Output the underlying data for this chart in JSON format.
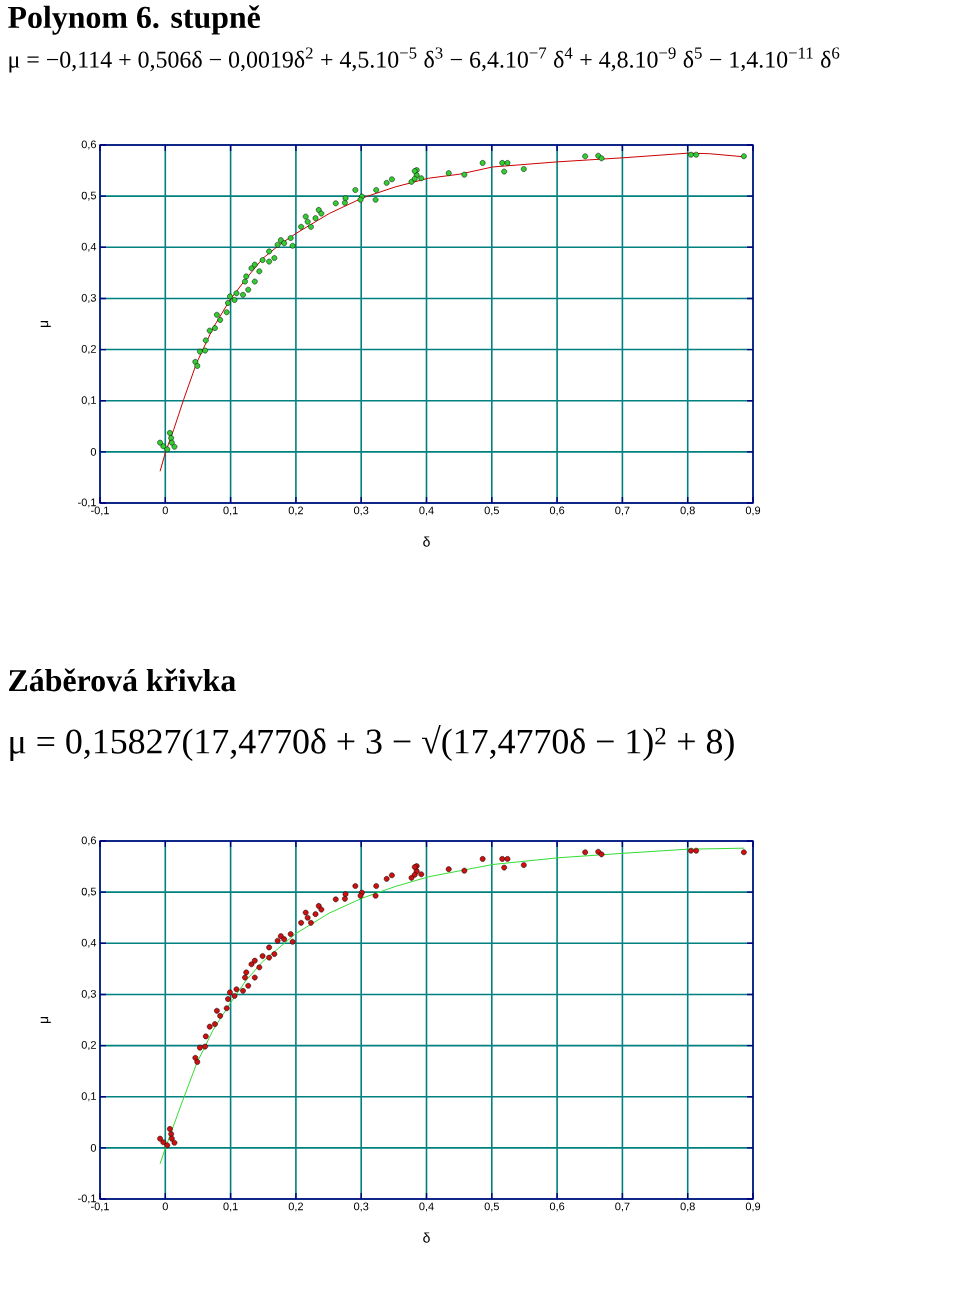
{
  "chart_data": [
    {
      "type": "scatter",
      "title": "Polynom 6. stupně",
      "subtitle": "μ = −0,114 + 0,506δ − 0,0019δ$^{2}$ + 4,5.10$^{−5}$ δ$^{3}$ − 6,4.10$^{−7}$ δ$^{4}$ + 4,8.10$^{−9}$ δ$^{5}$ − 1,4.10$^{−11}$ δ$^{6}$",
      "xlabel": "δ",
      "ylabel": "μ",
      "xlim": [
        -0.1,
        0.9
      ],
      "ylim": [
        -0.1,
        0.6
      ],
      "xticks": [
        {
          "value": -0.1,
          "label": "-0,1"
        },
        0,
        {
          "value": 0.1,
          "label": "0,1"
        },
        {
          "value": 0.2,
          "label": "0,2"
        },
        {
          "value": 0.3,
          "label": "0,3"
        },
        {
          "value": 0.4,
          "label": "0,4"
        },
        {
          "value": 0.5,
          "label": "0,5"
        },
        {
          "value": 0.6,
          "label": "0,6"
        },
        {
          "value": 0.7,
          "label": "0,7"
        },
        {
          "value": 0.8,
          "label": "0,8"
        },
        {
          "value": 0.9,
          "label": "0,9"
        }
      ],
      "yticks": [
        {
          "value": -0.1,
          "label": "-0,1"
        },
        0,
        {
          "value": 0.1,
          "label": "0,1"
        },
        {
          "value": 0.2,
          "label": "0,2"
        },
        {
          "value": 0.3,
          "label": "0,3"
        },
        {
          "value": 0.4,
          "label": "0,4"
        },
        {
          "value": 0.5,
          "label": "0,5"
        },
        {
          "value": 0.6,
          "label": "0,6"
        }
      ],
      "grid": true,
      "series": [
        {
          "marker": "circle",
          "color": "#33cc33",
          "x": [
            -0.008,
            -0.003,
            0.007,
            0.009,
            0.003,
            0.014,
            0.01,
            0.046,
            0.049,
            0.053,
            0.062,
            0.061,
            0.068,
            0.076,
            0.079,
            0.084,
            0.094,
            0.096,
            0.099,
            0.106,
            0.109,
            0.119,
            0.122,
            0.124,
            0.127,
            0.132,
            0.137,
            0.137,
            0.144,
            0.149,
            0.159,
            0.159,
            0.167,
            0.172,
            0.177,
            0.182,
            0.195,
            0.192,
            0.208,
            0.215,
            0.218,
            0.223,
            0.23,
            0.235,
            0.239,
            0.261,
            0.276,
            0.275,
            0.291,
            0.301,
            0.299,
            0.322,
            0.323,
            0.339,
            0.347,
            0.385,
            0.385,
            0.377,
            0.392,
            0.382,
            0.382,
            0.434,
            0.458,
            0.486,
            0.516,
            0.524,
            0.519,
            0.549,
            0.643,
            0.663,
            0.668,
            0.805,
            0.813,
            0.886
          ],
          "values": [
            0.018,
            0.011,
            0.037,
            0.027,
            0.005,
            0.01,
            0.018,
            0.176,
            0.168,
            0.196,
            0.218,
            0.198,
            0.237,
            0.242,
            0.268,
            0.258,
            0.273,
            0.291,
            0.304,
            0.297,
            0.31,
            0.307,
            0.333,
            0.343,
            0.317,
            0.359,
            0.366,
            0.333,
            0.353,
            0.375,
            0.372,
            0.392,
            0.379,
            0.405,
            0.414,
            0.408,
            0.403,
            0.418,
            0.44,
            0.46,
            0.45,
            0.44,
            0.457,
            0.473,
            0.466,
            0.486,
            0.496,
            0.487,
            0.512,
            0.499,
            0.493,
            0.493,
            0.512,
            0.526,
            0.533,
            0.551,
            0.541,
            0.528,
            0.535,
            0.549,
            0.534,
            0.545,
            0.542,
            0.565,
            0.565,
            0.565,
            0.548,
            0.553,
            0.578,
            0.579,
            0.574,
            0.581,
            0.581,
            0.578
          ]
        },
        {
          "type": "line",
          "marker": "none",
          "line_style": "solid",
          "color": "#cc0000",
          "x": [
            -0.008,
            0,
            0.013,
            0.028,
            0.048,
            0.073,
            0.099,
            0.124,
            0.149,
            0.175,
            0.2,
            0.251,
            0.301,
            0.352,
            0.403,
            0.451,
            0.501,
            0.6,
            0.701,
            0.8,
            0.833,
            0.886
          ],
          "values": [
            -0.038,
            -0.002,
            0.044,
            0.102,
            0.174,
            0.242,
            0.297,
            0.339,
            0.378,
            0.405,
            0.427,
            0.466,
            0.496,
            0.518,
            0.535,
            0.543,
            0.557,
            0.567,
            0.575,
            0.584,
            0.583,
            0.577
          ]
        }
      ]
    },
    {
      "type": "scatter",
      "title": "Záběrová křivka",
      "subtitle": "μ = 0,15827(17,4770δ + 3 − √(17,4770δ − 1)$^{2}$ + 8)",
      "xlabel": "δ",
      "ylabel": "μ",
      "xlim": [
        -0.1,
        0.9
      ],
      "ylim": [
        -0.1,
        0.6
      ],
      "xticks": [
        {
          "value": -0.1,
          "label": "-0,1"
        },
        0,
        {
          "value": 0.1,
          "label": "0,1"
        },
        {
          "value": 0.2,
          "label": "0,2"
        },
        {
          "value": 0.3,
          "label": "0,3"
        },
        {
          "value": 0.4,
          "label": "0,4"
        },
        {
          "value": 0.5,
          "label": "0,5"
        },
        {
          "value": 0.6,
          "label": "0,6"
        },
        {
          "value": 0.7,
          "label": "0,7"
        },
        {
          "value": 0.8,
          "label": "0,8"
        },
        {
          "value": 0.9,
          "label": "0,9"
        }
      ],
      "yticks": [
        {
          "value": -0.1,
          "label": "-0,1"
        },
        0,
        {
          "value": 0.1,
          "label": "0,1"
        },
        {
          "value": 0.2,
          "label": "0,2"
        },
        {
          "value": 0.3,
          "label": "0,3"
        },
        {
          "value": 0.4,
          "label": "0,4"
        },
        {
          "value": 0.5,
          "label": "0,5"
        },
        {
          "value": 0.6,
          "label": "0,6"
        }
      ],
      "grid": true,
      "series": [
        {
          "marker": "circle",
          "color": "#cc1111",
          "x": [
            -0.008,
            -0.003,
            0.007,
            0.009,
            0.003,
            0.014,
            0.01,
            0.046,
            0.049,
            0.053,
            0.062,
            0.061,
            0.068,
            0.076,
            0.079,
            0.084,
            0.094,
            0.096,
            0.099,
            0.106,
            0.109,
            0.119,
            0.122,
            0.124,
            0.127,
            0.132,
            0.137,
            0.137,
            0.144,
            0.149,
            0.159,
            0.159,
            0.167,
            0.172,
            0.177,
            0.182,
            0.195,
            0.192,
            0.208,
            0.215,
            0.218,
            0.223,
            0.23,
            0.235,
            0.239,
            0.261,
            0.276,
            0.275,
            0.291,
            0.301,
            0.299,
            0.322,
            0.323,
            0.339,
            0.347,
            0.385,
            0.385,
            0.377,
            0.392,
            0.382,
            0.382,
            0.434,
            0.458,
            0.486,
            0.516,
            0.524,
            0.519,
            0.549,
            0.643,
            0.663,
            0.668,
            0.805,
            0.813,
            0.886
          ],
          "values": [
            0.018,
            0.011,
            0.037,
            0.027,
            0.005,
            0.01,
            0.018,
            0.176,
            0.168,
            0.196,
            0.218,
            0.198,
            0.237,
            0.242,
            0.268,
            0.258,
            0.273,
            0.291,
            0.304,
            0.297,
            0.31,
            0.307,
            0.333,
            0.343,
            0.317,
            0.359,
            0.366,
            0.333,
            0.353,
            0.375,
            0.372,
            0.392,
            0.379,
            0.405,
            0.414,
            0.408,
            0.403,
            0.418,
            0.44,
            0.46,
            0.45,
            0.44,
            0.457,
            0.473,
            0.466,
            0.486,
            0.496,
            0.487,
            0.512,
            0.499,
            0.493,
            0.493,
            0.512,
            0.526,
            0.533,
            0.551,
            0.541,
            0.528,
            0.535,
            0.549,
            0.534,
            0.545,
            0.542,
            0.565,
            0.565,
            0.565,
            0.548,
            0.553,
            0.578,
            0.579,
            0.574,
            0.581,
            0.581,
            0.578
          ]
        },
        {
          "type": "line",
          "marker": "none",
          "line_style": "solid",
          "color": "#33dd33",
          "x": [
            -0.008,
            0,
            0.023,
            0.048,
            0.073,
            0.099,
            0.124,
            0.149,
            0.2,
            0.251,
            0.301,
            0.352,
            0.403,
            0.501,
            0.6,
            0.701,
            0.8,
            0.886
          ],
          "values": [
            -0.031,
            -0.001,
            0.08,
            0.165,
            0.23,
            0.282,
            0.328,
            0.364,
            0.419,
            0.459,
            0.488,
            0.511,
            0.53,
            0.554,
            0.567,
            0.576,
            0.584,
            0.586
          ]
        }
      ]
    }
  ]
}
